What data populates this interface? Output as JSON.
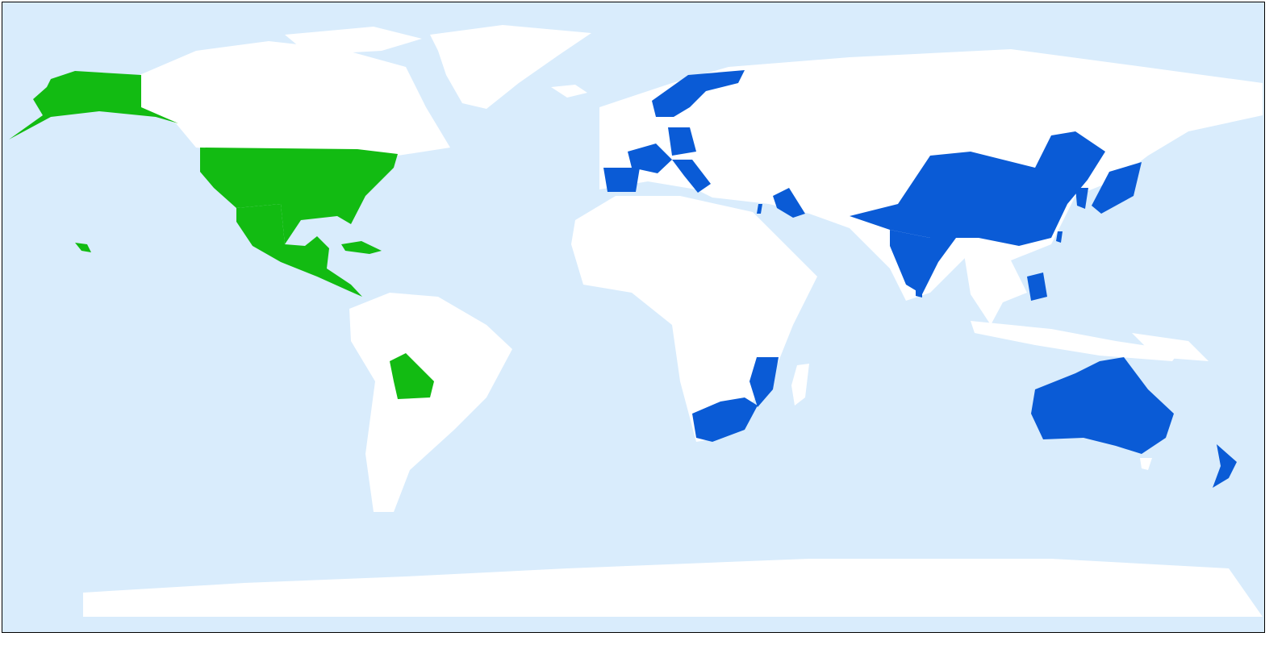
{
  "map": {
    "projection": "equirectangular",
    "colors": {
      "ocean": "#d9ecfc",
      "land": "#ffffff",
      "green": "#12bb12",
      "blue": "#0a5bd6",
      "border": "#000000"
    },
    "highlight_groups": [
      {
        "color_key": "green",
        "regions": [
          "alaska",
          "usa",
          "mexico-central-america",
          "cuba-bahamas",
          "hawaii",
          "bolivia"
        ]
      },
      {
        "color_key": "blue",
        "regions": [
          "scandinavia",
          "france",
          "spain",
          "germany",
          "italy",
          "iraq",
          "israel",
          "south-africa",
          "mozambique",
          "china",
          "india",
          "sri-lanka",
          "japan",
          "korea",
          "taiwan",
          "philippines",
          "australia",
          "new-zealand"
        ]
      }
    ]
  }
}
